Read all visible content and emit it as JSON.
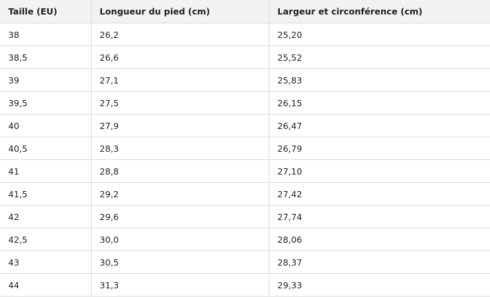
{
  "table": {
    "headers": [
      "Taille (EU)",
      "Longueur du pied (cm)",
      "Largeur et circonférence (cm)"
    ],
    "rows": [
      [
        "38",
        "26,2",
        "25,20"
      ],
      [
        "38,5",
        "26,6",
        "25,52"
      ],
      [
        "39",
        "27,1",
        "25,83"
      ],
      [
        "39,5",
        "27,5",
        "26,15"
      ],
      [
        "40",
        "27,9",
        "26,47"
      ],
      [
        "40,5",
        "28,3",
        "26,79"
      ],
      [
        "41",
        "28,8",
        "27,10"
      ],
      [
        "41,5",
        "29,2",
        "27,42"
      ],
      [
        "42",
        "29,6",
        "27,74"
      ],
      [
        "42,5",
        "30,0",
        "28,06"
      ],
      [
        "43",
        "30,5",
        "28,37"
      ],
      [
        "44",
        "31,3",
        "29,33"
      ]
    ]
  }
}
